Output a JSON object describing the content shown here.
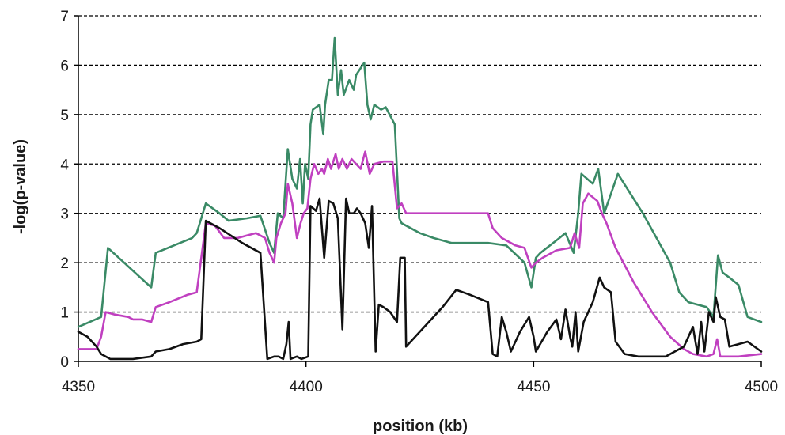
{
  "chart_data": {
    "type": "line",
    "title": "",
    "xlabel": "position (kb)",
    "ylabel": "-log(p-value)",
    "xlim": [
      4350,
      4500
    ],
    "ylim": [
      0,
      7
    ],
    "xticks": [
      4350,
      4400,
      4450,
      4500
    ],
    "yticks": [
      0,
      1,
      2,
      3,
      4,
      5,
      6,
      7
    ],
    "grid": "horizontal-dashed",
    "legend": "none",
    "series": [
      {
        "color": "#3a8a66",
        "points": [
          [
            4350,
            0.7
          ],
          [
            4355,
            0.9
          ],
          [
            4356.5,
            2.3
          ],
          [
            4366,
            1.5
          ],
          [
            4367,
            2.2
          ],
          [
            4375,
            2.5
          ],
          [
            4376,
            2.6
          ],
          [
            4378,
            3.2
          ],
          [
            4381,
            3.0
          ],
          [
            4383,
            2.85
          ],
          [
            4387,
            2.9
          ],
          [
            4390,
            2.95
          ],
          [
            4392,
            2.4
          ],
          [
            4393,
            2.2
          ],
          [
            4393.8,
            3.0
          ],
          [
            4395,
            2.9
          ],
          [
            4396,
            4.3
          ],
          [
            4397,
            3.7
          ],
          [
            4398,
            3.5
          ],
          [
            4398.7,
            4.1
          ],
          [
            4399.3,
            3.2
          ],
          [
            4399.8,
            4.0
          ],
          [
            4400.5,
            3.7
          ],
          [
            4401,
            4.8
          ],
          [
            4401.5,
            5.1
          ],
          [
            4403,
            5.2
          ],
          [
            4403.8,
            4.6
          ],
          [
            4404.2,
            5.2
          ],
          [
            4405,
            5.7
          ],
          [
            4405.7,
            5.7
          ],
          [
            4406.3,
            6.55
          ],
          [
            4407,
            5.4
          ],
          [
            4407.7,
            5.9
          ],
          [
            4408.3,
            5.4
          ],
          [
            4409.5,
            5.7
          ],
          [
            4410.5,
            5.5
          ],
          [
            4411,
            5.8
          ],
          [
            4412.8,
            6.05
          ],
          [
            4413.5,
            5.2
          ],
          [
            4414.2,
            4.9
          ],
          [
            4415,
            5.2
          ],
          [
            4416.5,
            5.1
          ],
          [
            4417.5,
            5.15
          ],
          [
            4419.5,
            4.8
          ],
          [
            4420.5,
            2.9
          ],
          [
            4421,
            2.8
          ],
          [
            4425,
            2.6
          ],
          [
            4428,
            2.5
          ],
          [
            4432,
            2.4
          ],
          [
            4440,
            2.4
          ],
          [
            4444,
            2.35
          ],
          [
            4448,
            2.0
          ],
          [
            4449.5,
            1.5
          ],
          [
            4450.5,
            2.1
          ],
          [
            4451.5,
            2.2
          ],
          [
            4455,
            2.45
          ],
          [
            4457,
            2.6
          ],
          [
            4458.8,
            2.2
          ],
          [
            4459.8,
            3.0
          ],
          [
            4460.5,
            3.8
          ],
          [
            4463,
            3.6
          ],
          [
            4464.2,
            3.9
          ],
          [
            4465.5,
            3.0
          ],
          [
            4468.5,
            3.8
          ],
          [
            4474,
            3.0
          ],
          [
            4480,
            2.0
          ],
          [
            4482,
            1.4
          ],
          [
            4484,
            1.2
          ],
          [
            4488,
            1.1
          ],
          [
            4489.5,
            0.9
          ],
          [
            4490.5,
            2.15
          ],
          [
            4491.5,
            1.8
          ],
          [
            4493,
            1.7
          ],
          [
            4495,
            1.55
          ],
          [
            4497,
            0.9
          ],
          [
            4500,
            0.8
          ]
        ]
      },
      {
        "color": "#c040c0",
        "points": [
          [
            4350,
            0.25
          ],
          [
            4352,
            0.25
          ],
          [
            4354,
            0.25
          ],
          [
            4355,
            0.5
          ],
          [
            4356,
            1.0
          ],
          [
            4358,
            0.95
          ],
          [
            4361,
            0.9
          ],
          [
            4362,
            0.85
          ],
          [
            4364,
            0.85
          ],
          [
            4366,
            0.8
          ],
          [
            4367,
            1.1
          ],
          [
            4370,
            1.2
          ],
          [
            4374,
            1.35
          ],
          [
            4376,
            1.4
          ],
          [
            4378,
            2.8
          ],
          [
            4380,
            2.75
          ],
          [
            4382,
            2.5
          ],
          [
            4385,
            2.5
          ],
          [
            4387,
            2.55
          ],
          [
            4389,
            2.6
          ],
          [
            4391,
            2.5
          ],
          [
            4392,
            2.2
          ],
          [
            4393,
            2.0
          ],
          [
            4393.5,
            2.5
          ],
          [
            4394.5,
            2.8
          ],
          [
            4395.5,
            3.0
          ],
          [
            4396,
            3.6
          ],
          [
            4397,
            3.2
          ],
          [
            4398,
            2.5
          ],
          [
            4398.8,
            2.8
          ],
          [
            4399.5,
            3.0
          ],
          [
            4400.3,
            3.1
          ],
          [
            4401,
            3.7
          ],
          [
            4401.8,
            4.0
          ],
          [
            4402.7,
            3.8
          ],
          [
            4403.5,
            3.9
          ],
          [
            4404,
            3.8
          ],
          [
            4404.8,
            4.1
          ],
          [
            4405.5,
            3.9
          ],
          [
            4406.5,
            4.2
          ],
          [
            4407.2,
            3.9
          ],
          [
            4408,
            4.1
          ],
          [
            4409,
            3.9
          ],
          [
            4410,
            4.1
          ],
          [
            4411,
            4.0
          ],
          [
            4412,
            3.9
          ],
          [
            4413,
            4.25
          ],
          [
            4414,
            3.8
          ],
          [
            4415,
            4.0
          ],
          [
            4417,
            4.05
          ],
          [
            4419,
            4.05
          ],
          [
            4420,
            3.1
          ],
          [
            4421,
            3.2
          ],
          [
            4422,
            3.0
          ],
          [
            4430,
            3.0
          ],
          [
            4436,
            3.0
          ],
          [
            4440,
            3.0
          ],
          [
            4441,
            2.7
          ],
          [
            4443,
            2.5
          ],
          [
            4446,
            2.35
          ],
          [
            4448,
            2.3
          ],
          [
            4449.5,
            1.9
          ],
          [
            4450.5,
            2.0
          ],
          [
            4452,
            2.1
          ],
          [
            4455,
            2.25
          ],
          [
            4458,
            2.3
          ],
          [
            4459,
            2.6
          ],
          [
            4460,
            2.3
          ],
          [
            4460.8,
            3.2
          ],
          [
            4462,
            3.4
          ],
          [
            4464,
            3.25
          ],
          [
            4465,
            3.0
          ],
          [
            4466,
            2.8
          ],
          [
            4468,
            2.3
          ],
          [
            4472,
            1.6
          ],
          [
            4476,
            1.0
          ],
          [
            4480,
            0.5
          ],
          [
            4483,
            0.25
          ],
          [
            4485,
            0.15
          ],
          [
            4488,
            0.1
          ],
          [
            4489.5,
            0.15
          ],
          [
            4490.3,
            0.45
          ],
          [
            4491,
            0.1
          ],
          [
            4495,
            0.1
          ],
          [
            4500,
            0.15
          ]
        ]
      },
      {
        "color": "#111111",
        "points": [
          [
            4350,
            0.6
          ],
          [
            4352,
            0.5
          ],
          [
            4354,
            0.3
          ],
          [
            4355,
            0.15
          ],
          [
            4356,
            0.1
          ],
          [
            4357,
            0.05
          ],
          [
            4360,
            0.05
          ],
          [
            4362,
            0.05
          ],
          [
            4366,
            0.1
          ],
          [
            4367,
            0.2
          ],
          [
            4370,
            0.25
          ],
          [
            4373,
            0.35
          ],
          [
            4376,
            0.4
          ],
          [
            4377,
            0.45
          ],
          [
            4378,
            2.85
          ],
          [
            4381,
            2.7
          ],
          [
            4386,
            2.4
          ],
          [
            4390,
            2.2
          ],
          [
            4391.5,
            0.05
          ],
          [
            4393,
            0.1
          ],
          [
            4394,
            0.1
          ],
          [
            4395,
            0.05
          ],
          [
            4395.7,
            0.35
          ],
          [
            4396.2,
            0.8
          ],
          [
            4396.6,
            0.05
          ],
          [
            4398,
            0.1
          ],
          [
            4399,
            0.05
          ],
          [
            4400.5,
            0.1
          ],
          [
            4401,
            3.15
          ],
          [
            4402.2,
            3.05
          ],
          [
            4403,
            3.3
          ],
          [
            4404,
            2.1
          ],
          [
            4405,
            3.25
          ],
          [
            4406,
            3.2
          ],
          [
            4407,
            2.9
          ],
          [
            4408,
            0.65
          ],
          [
            4408.8,
            3.3
          ],
          [
            4409.5,
            3.0
          ],
          [
            4410.5,
            3.0
          ],
          [
            4411.2,
            3.1
          ],
          [
            4412,
            3.0
          ],
          [
            4413,
            2.8
          ],
          [
            4413.8,
            2.3
          ],
          [
            4414.5,
            3.15
          ],
          [
            4415.3,
            0.2
          ],
          [
            4416,
            1.15
          ],
          [
            4417,
            1.1
          ],
          [
            4418.5,
            1.0
          ],
          [
            4420,
            0.8
          ],
          [
            4420.7,
            2.1
          ],
          [
            4421.7,
            2.1
          ],
          [
            4422,
            0.3
          ],
          [
            4425,
            0.6
          ],
          [
            4428,
            0.9
          ],
          [
            4430,
            1.1
          ],
          [
            4433,
            1.45
          ],
          [
            4436,
            1.35
          ],
          [
            4440,
            1.2
          ],
          [
            4441,
            0.15
          ],
          [
            4442,
            0.1
          ],
          [
            4443,
            0.9
          ],
          [
            4444,
            0.6
          ],
          [
            4445,
            0.2
          ],
          [
            4447,
            0.6
          ],
          [
            4449,
            0.9
          ],
          [
            4450,
            0.5
          ],
          [
            4450.5,
            0.2
          ],
          [
            4453,
            0.6
          ],
          [
            4455,
            0.85
          ],
          [
            4456,
            0.45
          ],
          [
            4457,
            1.05
          ],
          [
            4458,
            0.5
          ],
          [
            4458.5,
            0.3
          ],
          [
            4459.2,
            1.0
          ],
          [
            4459.8,
            0.2
          ],
          [
            4461,
            0.8
          ],
          [
            4463,
            1.2
          ],
          [
            4464.5,
            1.7
          ],
          [
            4465.5,
            1.5
          ],
          [
            4467,
            1.4
          ],
          [
            4468,
            0.4
          ],
          [
            4470,
            0.15
          ],
          [
            4473,
            0.1
          ],
          [
            4476,
            0.1
          ],
          [
            4479,
            0.1
          ],
          [
            4481,
            0.2
          ],
          [
            4483,
            0.3
          ],
          [
            4485,
            0.7
          ],
          [
            4486,
            0.15
          ],
          [
            4486.8,
            0.8
          ],
          [
            4487.5,
            0.2
          ],
          [
            4488.5,
            1.0
          ],
          [
            4489.5,
            0.8
          ],
          [
            4490,
            1.3
          ],
          [
            4491,
            0.9
          ],
          [
            4492,
            0.85
          ],
          [
            4493,
            0.3
          ],
          [
            4495,
            0.35
          ],
          [
            4497,
            0.4
          ],
          [
            4500,
            0.2
          ]
        ]
      }
    ]
  }
}
